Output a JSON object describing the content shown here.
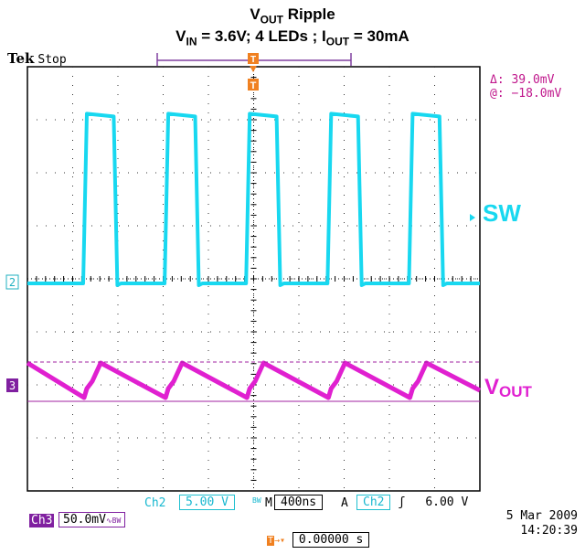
{
  "title_line1": "V<sub>OUT</sub> Ripple",
  "title_main": "VOUT Ripple",
  "title2_parts": [
    "V",
    "IN",
    " = 3.6V; 4 LEDs ; I",
    "OUT",
    " = 30mA"
  ],
  "brand": "Tek",
  "status": "Stop",
  "cursor": {
    "delta": "Δ:  39.0mV",
    "at": "@: −18.0mV"
  },
  "labels": {
    "sw": "SW",
    "vout_main": "V",
    "vout_sub": "OUT"
  },
  "markers": {
    "ch2": "2",
    "ch3": "3",
    "trigger": "T"
  },
  "settings": {
    "ch2_name": "Ch2",
    "ch2_scale": "5.00 V",
    "ch2_bw": "BW",
    "timebase_prefix": "M",
    "timebase": "400ns",
    "trig_mode": "A",
    "trig_src": "Ch2",
    "trig_slope": "ʃ",
    "trig_level": "6.00 V",
    "ch3_name": "Ch3",
    "ch3_scale": "50.0mV",
    "ch3_flags": "∿BW",
    "trig_pos": "0.00000 s"
  },
  "date": "5 Mar  2009",
  "time": "14:20:39",
  "colors": {
    "ch2": "#18d8f0",
    "ch3": "#e020d0",
    "cursor": "#c0178c",
    "trig": "#f08020"
  },
  "chart_data": {
    "type": "line",
    "x_divisions": 10,
    "y_divisions": 8,
    "time_per_div": "400ns",
    "series": [
      {
        "name": "SW",
        "channel": "Ch2",
        "volts_per_div": 5.0,
        "period_div": 1.8,
        "duty": 0.33,
        "low_div": 0,
        "high_div": 3.2
      },
      {
        "name": "VOUT",
        "channel": "Ch3",
        "volts_per_div": 0.05,
        "period_div": 1.8,
        "peak_to_peak_mV": 39.0,
        "min_mV": -18.0
      }
    ]
  }
}
